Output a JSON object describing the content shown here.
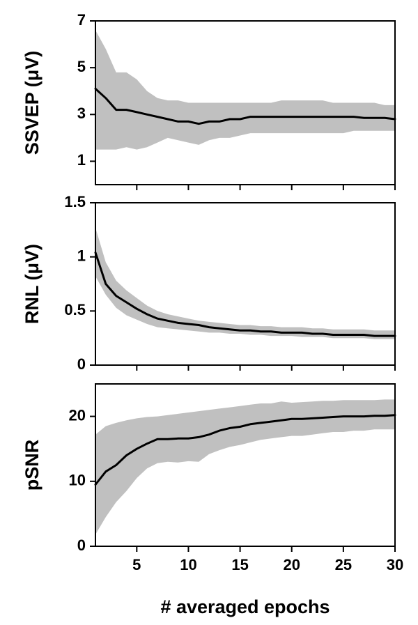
{
  "colors": {
    "band": "#c0c0c0",
    "line": "#000000",
    "axis": "#000000"
  },
  "xlabel": "# averaged epochs",
  "chart_data": [
    {
      "type": "area",
      "ylabel": "SSVEP (μV)",
      "xlim": [
        1,
        30
      ],
      "ylim": [
        0,
        7
      ],
      "yticks": [
        1,
        3,
        5,
        7
      ],
      "xticks": [
        5,
        10,
        15,
        20,
        25,
        30
      ],
      "xtick_labels_shown": false,
      "x": [
        1,
        2,
        3,
        4,
        5,
        6,
        7,
        8,
        9,
        10,
        11,
        12,
        13,
        14,
        15,
        16,
        17,
        18,
        19,
        20,
        21,
        22,
        23,
        24,
        25,
        26,
        27,
        28,
        29,
        30
      ],
      "series": [
        {
          "mean": [
            4.1,
            3.7,
            3.2,
            3.2,
            3.1,
            3.0,
            2.9,
            2.8,
            2.7,
            2.7,
            2.6,
            2.7,
            2.7,
            2.8,
            2.8,
            2.9,
            2.9,
            2.9,
            2.9,
            2.9,
            2.9,
            2.9,
            2.9,
            2.9,
            2.9,
            2.9,
            2.85,
            2.85,
            2.85,
            2.8
          ],
          "upper": [
            6.6,
            5.8,
            4.8,
            4.8,
            4.5,
            4.0,
            3.7,
            3.6,
            3.6,
            3.5,
            3.5,
            3.5,
            3.5,
            3.5,
            3.5,
            3.5,
            3.5,
            3.5,
            3.6,
            3.6,
            3.6,
            3.6,
            3.6,
            3.5,
            3.5,
            3.5,
            3.5,
            3.5,
            3.4,
            3.4
          ],
          "lower": [
            1.5,
            1.5,
            1.5,
            1.6,
            1.5,
            1.6,
            1.8,
            2.0,
            1.9,
            1.8,
            1.7,
            1.9,
            2.0,
            2.0,
            2.1,
            2.2,
            2.2,
            2.2,
            2.2,
            2.2,
            2.2,
            2.2,
            2.2,
            2.2,
            2.2,
            2.3,
            2.3,
            2.3,
            2.3,
            2.3
          ]
        }
      ]
    },
    {
      "type": "area",
      "ylabel": "RNL (μV)",
      "xlim": [
        1,
        30
      ],
      "ylim": [
        0,
        1.5
      ],
      "yticks": [
        0,
        0.5,
        1,
        1.5
      ],
      "ytick_labels": [
        "0",
        "0.5",
        "1",
        "1.5"
      ],
      "xticks": [
        5,
        10,
        15,
        20,
        25,
        30
      ],
      "xtick_labels_shown": false,
      "x": [
        1,
        2,
        3,
        4,
        5,
        6,
        7,
        8,
        9,
        10,
        11,
        12,
        13,
        14,
        15,
        16,
        17,
        18,
        19,
        20,
        21,
        22,
        23,
        24,
        25,
        26,
        27,
        28,
        29,
        30
      ],
      "series": [
        {
          "mean": [
            1.04,
            0.75,
            0.64,
            0.58,
            0.52,
            0.47,
            0.43,
            0.41,
            0.39,
            0.38,
            0.37,
            0.35,
            0.34,
            0.33,
            0.32,
            0.32,
            0.31,
            0.31,
            0.3,
            0.3,
            0.3,
            0.29,
            0.29,
            0.28,
            0.28,
            0.28,
            0.28,
            0.27,
            0.27,
            0.27
          ],
          "upper": [
            1.27,
            0.95,
            0.78,
            0.69,
            0.62,
            0.55,
            0.5,
            0.47,
            0.45,
            0.43,
            0.41,
            0.4,
            0.39,
            0.38,
            0.37,
            0.37,
            0.36,
            0.36,
            0.35,
            0.35,
            0.35,
            0.34,
            0.34,
            0.33,
            0.33,
            0.33,
            0.33,
            0.32,
            0.32,
            0.32
          ],
          "lower": [
            0.82,
            0.65,
            0.53,
            0.46,
            0.42,
            0.38,
            0.35,
            0.34,
            0.33,
            0.32,
            0.31,
            0.3,
            0.3,
            0.29,
            0.29,
            0.28,
            0.28,
            0.27,
            0.27,
            0.27,
            0.26,
            0.26,
            0.26,
            0.25,
            0.25,
            0.25,
            0.25,
            0.24,
            0.24,
            0.24
          ]
        }
      ]
    },
    {
      "type": "area",
      "ylabel": "pSNR",
      "xlim": [
        1,
        30
      ],
      "ylim": [
        0,
        25
      ],
      "yticks": [
        0,
        10,
        20
      ],
      "xticks": [
        5,
        10,
        15,
        20,
        25,
        30
      ],
      "xtick_labels_shown": true,
      "xlabel": "# averaged epochs",
      "x": [
        1,
        2,
        3,
        4,
        5,
        6,
        7,
        8,
        9,
        10,
        11,
        12,
        13,
        14,
        15,
        16,
        17,
        18,
        19,
        20,
        21,
        22,
        23,
        24,
        25,
        26,
        27,
        28,
        29,
        30
      ],
      "series": [
        {
          "mean": [
            9.5,
            11.5,
            12.5,
            14.0,
            15.0,
            15.8,
            16.5,
            16.5,
            16.6,
            16.6,
            16.8,
            17.2,
            17.8,
            18.2,
            18.4,
            18.8,
            19.0,
            19.2,
            19.4,
            19.6,
            19.6,
            19.7,
            19.8,
            19.9,
            20.0,
            20.0,
            20.0,
            20.1,
            20.1,
            20.2
          ],
          "upper": [
            17.2,
            18.5,
            19.0,
            19.4,
            19.7,
            19.9,
            20.0,
            20.2,
            20.4,
            20.6,
            20.8,
            21.0,
            21.2,
            21.4,
            21.6,
            21.8,
            22.0,
            22.0,
            22.3,
            22.1,
            22.2,
            22.3,
            22.4,
            22.4,
            22.5,
            22.5,
            22.5,
            22.5,
            22.6,
            22.6
          ],
          "lower": [
            1.8,
            4.5,
            6.8,
            8.5,
            10.5,
            12.0,
            12.8,
            13.0,
            12.9,
            13.1,
            13.0,
            14.2,
            14.8,
            15.3,
            15.6,
            16.0,
            16.4,
            16.6,
            16.8,
            17.0,
            17.0,
            17.2,
            17.4,
            17.6,
            17.6,
            17.8,
            17.8,
            18.0,
            18.0,
            18.0
          ]
        }
      ]
    }
  ]
}
